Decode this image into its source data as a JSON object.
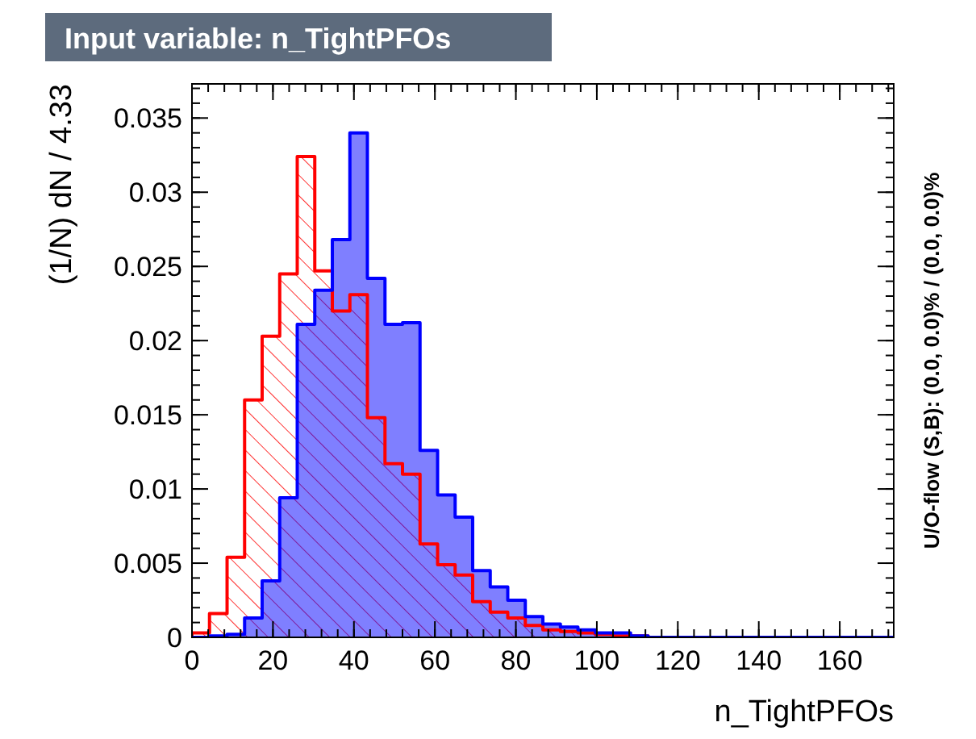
{
  "chart_data": {
    "type": "histogram",
    "title": "Input variable: n_TightPFOs",
    "xlabel": "n_TightPFOs",
    "ylabel": "(1/N) dN / 4.33",
    "annotations": [
      "U/O-flow (S,B): (0.0, 0.0)% / (0.0, 0.0)%"
    ],
    "bins": [
      0,
      4.33,
      8.67,
      13,
      17.33,
      21.67,
      26,
      30.33,
      34.67,
      39,
      43.33,
      47.67,
      52,
      56.33,
      60.67,
      65,
      69.33,
      73.67,
      78,
      82.33,
      86.67,
      91,
      95.33,
      99.67,
      104,
      108.33,
      112.67,
      117,
      121.33,
      125.67,
      130,
      134.33,
      138.67,
      143,
      147.33,
      151.67,
      156,
      160.33,
      164.67,
      169,
      173.33
    ],
    "series": [
      {
        "color": "#0000ff",
        "values": [
          0,
          0.0001,
          0.0002,
          0.0013,
          0.0038,
          0.0094,
          0.0211,
          0.0234,
          0.0268,
          0.034,
          0.0242,
          0.0211,
          0.0212,
          0.0126,
          0.0096,
          0.0081,
          0.0045,
          0.0034,
          0.0025,
          0.0014,
          0.0009,
          0.0007,
          0.0005,
          0.0003,
          0.0003,
          0.0001,
          0,
          0,
          0,
          0,
          0,
          0,
          0,
          0,
          0,
          0,
          0,
          0,
          0,
          0
        ]
      },
      {
        "color": "#ff0000",
        "values": [
          0.0003,
          0.0016,
          0.0054,
          0.016,
          0.0203,
          0.0245,
          0.0324,
          0.0247,
          0.022,
          0.0231,
          0.0148,
          0.0117,
          0.011,
          0.0063,
          0.0049,
          0.0042,
          0.0024,
          0.0017,
          0.0013,
          0.0008,
          0.0005,
          0.0004,
          0.0003,
          0.0002,
          0.0001,
          0.0001,
          0,
          0,
          0,
          0,
          0,
          0,
          0,
          0,
          0,
          0,
          0,
          0,
          0,
          0
        ]
      }
    ],
    "xlim": [
      0,
      173.33
    ],
    "ylim": [
      0,
      0.0373
    ],
    "xticks": [
      0,
      20,
      40,
      60,
      80,
      100,
      120,
      140,
      160
    ],
    "yticks": [
      0,
      0.005,
      0.01,
      0.015,
      0.02,
      0.025,
      0.03,
      0.035
    ],
    "grid": false
  }
}
